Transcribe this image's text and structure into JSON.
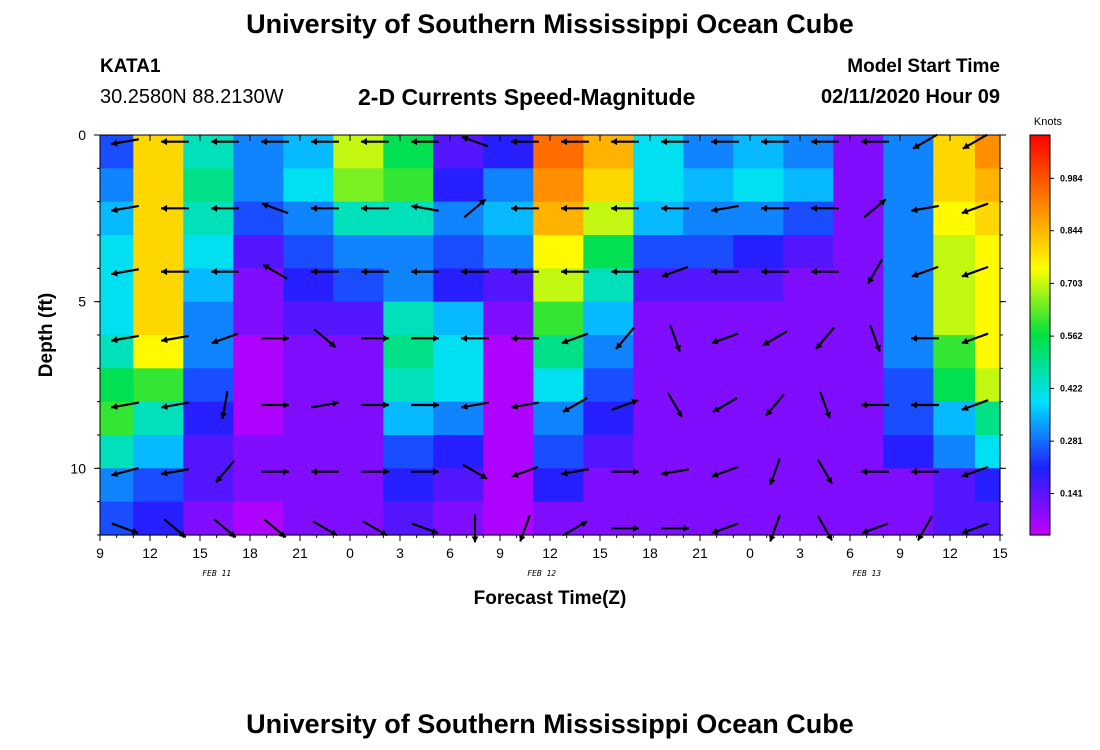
{
  "header": {
    "title": "University of Southern Mississippi Ocean Cube",
    "station": "KATA1",
    "coords": "30.2580N 88.2130W",
    "plot_title": "2-D Currents Speed-Magnitude",
    "start_label": "Model Start Time",
    "start_value": "02/11/2020 Hour 09"
  },
  "footer": {
    "title": "University of Southern Mississippi Ocean Cube"
  },
  "chart_data": {
    "type": "heatmap",
    "title": "2-D Currents Speed-Magnitude",
    "xlabel": "Forecast Time(Z)",
    "ylabel": "Depth (ft)",
    "x_ticks": [
      "9",
      "12",
      "15",
      "18",
      "21",
      "0",
      "3",
      "6",
      "9",
      "12",
      "15",
      "18",
      "21",
      "0",
      "3",
      "6",
      "9",
      "12",
      "15"
    ],
    "x_hours": [
      0,
      3,
      6,
      9,
      12,
      15,
      18,
      21,
      24,
      27,
      30,
      33,
      36,
      39,
      42,
      45,
      48,
      51,
      54
    ],
    "xlim": [
      0,
      54
    ],
    "date_labels": [
      {
        "text": "FEB 11",
        "hour": 7
      },
      {
        "text": "FEB 12",
        "hour": 26.5
      },
      {
        "text": "FEB 13",
        "hour": 46
      }
    ],
    "y_ticks": [
      0,
      5,
      10
    ],
    "ylim": [
      0,
      12
    ],
    "y_reversed": true,
    "colorbar": {
      "unit": "Knots",
      "ticks": [
        0.141,
        0.281,
        0.422,
        0.562,
        0.703,
        0.844,
        0.984
      ],
      "range": [
        0.03,
        1.1
      ]
    },
    "colors": {
      "scale": [
        "#c000ff",
        "#2020ff",
        "#00e0ff",
        "#00e040",
        "#ffff00",
        "#ff8000",
        "#ff0000"
      ],
      "grid_edge": "#000000"
    },
    "hours": [
      0.5,
      3.5,
      6.5,
      9.5,
      12.5,
      15.5,
      18.5,
      21.5,
      24.5,
      27.5,
      30.5,
      33.5,
      36.5,
      39.5,
      42.5,
      45.5,
      48.5,
      51.5,
      53.5
    ],
    "depths": [
      0.5,
      1.5,
      2.5,
      3.5,
      4.5,
      5.5,
      6.5,
      7.5,
      8.5,
      9.5,
      10.5,
      11.5
    ],
    "speed": [
      [
        0.25,
        0.8,
        0.45,
        0.3,
        0.35,
        0.7,
        0.55,
        0.15,
        0.2,
        0.95,
        0.85,
        0.4,
        0.3,
        0.35,
        0.3,
        0.1,
        0.3,
        0.8,
        0.9
      ],
      [
        0.3,
        0.8,
        0.5,
        0.3,
        0.4,
        0.65,
        0.6,
        0.2,
        0.3,
        0.9,
        0.8,
        0.4,
        0.35,
        0.4,
        0.35,
        0.1,
        0.3,
        0.8,
        0.85
      ],
      [
        0.35,
        0.8,
        0.45,
        0.25,
        0.3,
        0.45,
        0.45,
        0.3,
        0.35,
        0.85,
        0.7,
        0.35,
        0.3,
        0.3,
        0.25,
        0.1,
        0.3,
        0.75,
        0.8
      ],
      [
        0.4,
        0.8,
        0.4,
        0.15,
        0.25,
        0.3,
        0.3,
        0.25,
        0.3,
        0.75,
        0.55,
        0.25,
        0.25,
        0.2,
        0.15,
        0.1,
        0.3,
        0.7,
        0.75
      ],
      [
        0.4,
        0.8,
        0.35,
        0.1,
        0.2,
        0.25,
        0.3,
        0.2,
        0.15,
        0.7,
        0.45,
        0.15,
        0.15,
        0.15,
        0.1,
        0.1,
        0.3,
        0.7,
        0.75
      ],
      [
        0.4,
        0.8,
        0.3,
        0.1,
        0.15,
        0.15,
        0.45,
        0.35,
        0.1,
        0.6,
        0.35,
        0.1,
        0.1,
        0.1,
        0.1,
        0.1,
        0.3,
        0.7,
        0.75
      ],
      [
        0.45,
        0.75,
        0.3,
        0.05,
        0.1,
        0.1,
        0.5,
        0.4,
        0.05,
        0.5,
        0.3,
        0.1,
        0.1,
        0.1,
        0.1,
        0.1,
        0.3,
        0.6,
        0.75
      ],
      [
        0.55,
        0.6,
        0.25,
        0.05,
        0.1,
        0.1,
        0.45,
        0.4,
        0.05,
        0.4,
        0.25,
        0.1,
        0.1,
        0.1,
        0.1,
        0.1,
        0.25,
        0.55,
        0.7
      ],
      [
        0.6,
        0.45,
        0.2,
        0.05,
        0.1,
        0.1,
        0.35,
        0.3,
        0.05,
        0.3,
        0.2,
        0.1,
        0.1,
        0.1,
        0.1,
        0.1,
        0.25,
        0.35,
        0.5
      ],
      [
        0.45,
        0.35,
        0.15,
        0.1,
        0.1,
        0.1,
        0.25,
        0.2,
        0.05,
        0.25,
        0.15,
        0.1,
        0.1,
        0.1,
        0.1,
        0.1,
        0.2,
        0.3,
        0.4
      ],
      [
        0.3,
        0.25,
        0.15,
        0.1,
        0.1,
        0.1,
        0.2,
        0.15,
        0.05,
        0.2,
        0.1,
        0.1,
        0.1,
        0.1,
        0.1,
        0.1,
        0.1,
        0.15,
        0.2
      ],
      [
        0.25,
        0.2,
        0.1,
        0.05,
        0.1,
        0.1,
        0.15,
        0.1,
        0.05,
        0.1,
        0.1,
        0.1,
        0.1,
        0.1,
        0.1,
        0.1,
        0.1,
        0.15,
        0.15
      ]
    ],
    "vectors": {
      "hours": [
        1.5,
        4.5,
        7.5,
        10.5,
        13.5,
        16.5,
        19.5,
        22.5,
        25.5,
        28.5,
        31.5,
        34.5,
        37.5,
        40.5,
        43.5,
        46.5,
        49.5,
        52.5
      ],
      "depths": [
        0.2,
        2.2,
        4.1,
        6.1,
        8.1,
        10.1,
        11.8
      ],
      "directions_deg": [
        [
          190,
          180,
          180,
          180,
          180,
          180,
          180,
          160,
          180,
          180,
          180,
          180,
          180,
          180,
          180,
          180,
          210,
          210
        ],
        [
          190,
          180,
          180,
          160,
          180,
          180,
          170,
          40,
          180,
          180,
          180,
          180,
          190,
          180,
          180,
          40,
          190,
          200
        ],
        [
          190,
          180,
          180,
          150,
          180,
          180,
          180,
          180,
          180,
          180,
          180,
          200,
          180,
          180,
          180,
          240,
          200,
          200
        ],
        [
          190,
          190,
          200,
          0,
          320,
          0,
          0,
          180,
          180,
          200,
          230,
          290,
          200,
          210,
          230,
          290,
          180,
          200
        ],
        [
          190,
          190,
          260,
          0,
          10,
          0,
          0,
          190,
          190,
          210,
          20,
          300,
          210,
          230,
          290,
          180,
          180,
          200
        ],
        [
          195,
          190,
          230,
          0,
          180,
          0,
          0,
          330,
          200,
          190,
          0,
          190,
          200,
          250,
          300,
          180,
          180,
          200
        ],
        [
          340,
          320,
          320,
          320,
          330,
          330,
          340,
          270,
          250,
          30,
          0,
          0,
          200,
          250,
          300,
          200,
          240,
          200
        ]
      ]
    }
  }
}
